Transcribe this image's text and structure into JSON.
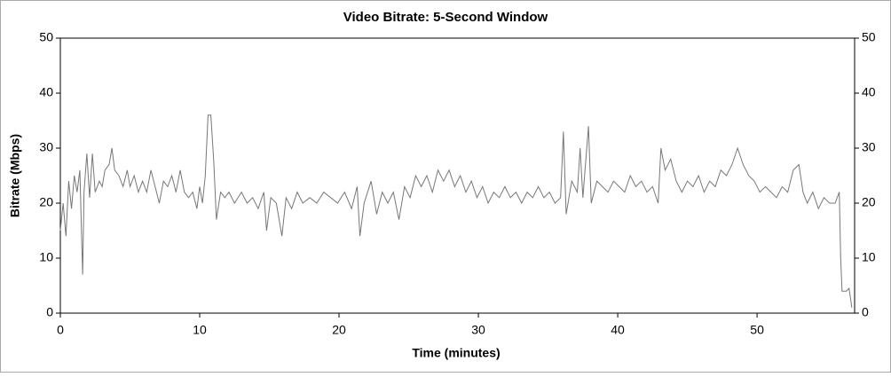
{
  "chart_data": {
    "type": "line",
    "title": "Video Bitrate: 5-Second Window",
    "x_label": "Time (minutes)",
    "y_label": "Bitrate (Mbps)",
    "xlim": [
      0,
      57
    ],
    "xticks": [
      0,
      10,
      20,
      30,
      40,
      50
    ],
    "ylim": [
      0,
      50
    ],
    "yticks": [
      0,
      10,
      20,
      30,
      40,
      50
    ],
    "color": "#777777",
    "x": [
      0,
      0.2,
      0.4,
      0.6,
      0.8,
      1.0,
      1.2,
      1.4,
      1.6,
      1.7,
      1.9,
      2.1,
      2.3,
      2.5,
      2.8,
      3.0,
      3.2,
      3.5,
      3.7,
      3.9,
      4.2,
      4.5,
      4.8,
      5.0,
      5.3,
      5.6,
      5.9,
      6.2,
      6.5,
      6.8,
      7.1,
      7.4,
      7.7,
      8.0,
      8.3,
      8.6,
      8.9,
      9.2,
      9.5,
      9.8,
      10.0,
      10.2,
      10.4,
      10.6,
      10.8,
      11.0,
      11.2,
      11.5,
      11.8,
      12.1,
      12.5,
      13.0,
      13.4,
      13.8,
      14.2,
      14.6,
      14.8,
      15.1,
      15.5,
      15.9,
      16.2,
      16.6,
      17.0,
      17.4,
      17.9,
      18.4,
      18.9,
      19.4,
      19.9,
      20.4,
      20.9,
      21.3,
      21.5,
      21.8,
      22.3,
      22.7,
      23.1,
      23.5,
      23.9,
      24.3,
      24.7,
      25.1,
      25.5,
      25.9,
      26.3,
      26.7,
      27.1,
      27.5,
      27.9,
      28.3,
      28.7,
      29.1,
      29.5,
      29.9,
      30.3,
      30.7,
      31.1,
      31.5,
      31.9,
      32.3,
      32.7,
      33.1,
      33.5,
      33.9,
      34.3,
      34.7,
      35.1,
      35.5,
      35.9,
      36.1,
      36.3,
      36.7,
      37.1,
      37.3,
      37.5,
      37.9,
      38.1,
      38.5,
      38.9,
      39.3,
      39.7,
      40.1,
      40.5,
      40.9,
      41.3,
      41.7,
      42.1,
      42.5,
      42.9,
      43.1,
      43.4,
      43.8,
      44.2,
      44.6,
      45.0,
      45.4,
      45.8,
      46.2,
      46.6,
      47.0,
      47.4,
      47.8,
      48.2,
      48.6,
      49.0,
      49.4,
      49.8,
      50.2,
      50.6,
      51.0,
      51.4,
      51.8,
      52.2,
      52.6,
      53.0,
      53.3,
      53.6,
      54.0,
      54.4,
      54.8,
      55.2,
      55.6,
      55.9,
      56.0,
      56.1,
      56.4,
      56.6,
      56.8
    ],
    "values": [
      15,
      20,
      14,
      24,
      19,
      25,
      22,
      26,
      7,
      22,
      29,
      21,
      29,
      22,
      24,
      23,
      26,
      27,
      30,
      26,
      25,
      23,
      26,
      23,
      25,
      22,
      24,
      22,
      26,
      23,
      20,
      24,
      23,
      25,
      22,
      26,
      22,
      21,
      22,
      19,
      23,
      20,
      25,
      36,
      36,
      28,
      17,
      22,
      21,
      22,
      20,
      22,
      20,
      21,
      19,
      22,
      15,
      21,
      20,
      14,
      21,
      19,
      22,
      20,
      21,
      20,
      22,
      21,
      20,
      22,
      19,
      23,
      14,
      20,
      24,
      18,
      22,
      20,
      22,
      17,
      23,
      21,
      25,
      23,
      25,
      22,
      26,
      24,
      26,
      23,
      25,
      22,
      24,
      21,
      23,
      20,
      22,
      21,
      23,
      21,
      22,
      20,
      22,
      21,
      23,
      21,
      22,
      20,
      21,
      33,
      18,
      24,
      22,
      30,
      21,
      34,
      20,
      24,
      23,
      22,
      24,
      23,
      22,
      25,
      23,
      24,
      22,
      23,
      20,
      30,
      26,
      28,
      24,
      22,
      24,
      23,
      25,
      22,
      24,
      23,
      26,
      25,
      27,
      30,
      27,
      25,
      24,
      22,
      23,
      22,
      21,
      23,
      22,
      26,
      27,
      22,
      20,
      22,
      19,
      21,
      20,
      20,
      22,
      10,
      4,
      4,
      4.5,
      1
    ]
  }
}
